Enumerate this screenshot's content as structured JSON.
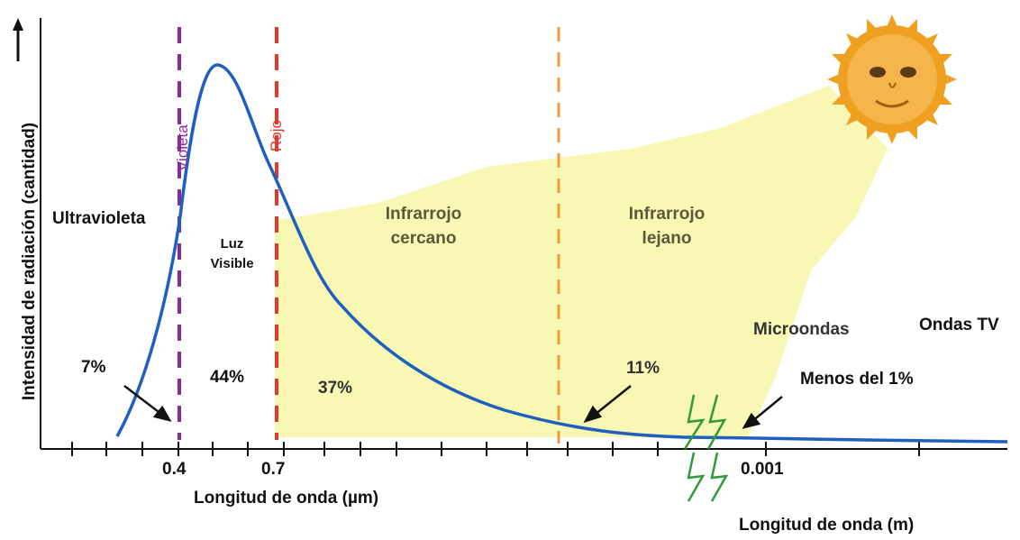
{
  "y_axis_label": "Intensidad de radiación (cantidad)",
  "lines": {
    "violet": {
      "label": "Violeta",
      "color": "#8a2a9a"
    },
    "red": {
      "label": "Rojo",
      "color": "#e03a2a"
    },
    "orange": {
      "color": "#f29a3a"
    }
  },
  "regions": {
    "uv": "Ultravioleta",
    "visible_1": "Luz",
    "visible_2": "Visible",
    "nir_1": "Infrarrojo",
    "nir_2": "cercano",
    "fir_1": "Infrarrojo",
    "fir_2": "lejano",
    "micro": "Microondas",
    "tv": "Ondas TV"
  },
  "percentages": {
    "uv": "7%",
    "visible": "44%",
    "nir": "37%",
    "fir": "11%",
    "less": "Menos del 1%"
  },
  "ticks": {
    "t1": "0.4",
    "t2": "0.7",
    "t3": "0.001"
  },
  "x_labels": {
    "micrometers": "Longitud de onda (µm)",
    "meters": "Longitud de onda (m)"
  },
  "colors": {
    "curve": "#1f5fbf",
    "fill": "#f8f7b4",
    "sun": "#f0a020",
    "break": "#2e9a3a"
  },
  "icons": {
    "sun": "sun-face-icon",
    "y_arrow": "arrow-up-icon"
  }
}
